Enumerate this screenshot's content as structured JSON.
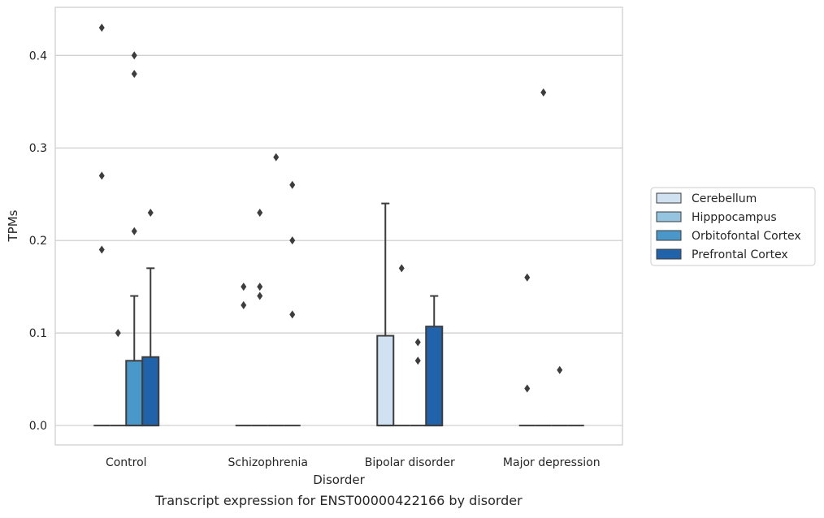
{
  "caption": "Transcript expression for ENST00000422166 by disorder",
  "chart_data": {
    "type": "boxplot",
    "title": "",
    "xlabel": "Disorder",
    "ylabel": "TPMs",
    "ylim": [
      -0.021,
      0.452
    ],
    "yticks": [
      0.0,
      0.1,
      0.2,
      0.3,
      0.4
    ],
    "ytick_labels": [
      "0.0",
      "0.1",
      "0.2",
      "0.3",
      "0.4"
    ],
    "grid": "horizontal",
    "legend_position": "right",
    "categories": [
      "Control",
      "Schizophrenia",
      "Bipolar disorder",
      "Major depression"
    ],
    "series": [
      {
        "name": "Cerebellum",
        "color": "#d0e1f2",
        "boxes": [
          {
            "q1": 0,
            "median": 0,
            "q3": 0,
            "whisker_low": 0,
            "whisker_high": 0,
            "outliers": [
              0.19,
              0.27,
              0.43
            ]
          },
          {
            "q1": 0,
            "median": 0,
            "q3": 0,
            "whisker_low": 0,
            "whisker_high": 0,
            "outliers": [
              0.13,
              0.15
            ]
          },
          {
            "q1": 0,
            "median": 0,
            "q3": 0.097,
            "whisker_low": 0,
            "whisker_high": 0.24,
            "outliers": []
          },
          {
            "q1": 0,
            "median": 0,
            "q3": 0,
            "whisker_low": 0,
            "whisker_high": 0,
            "outliers": [
              0.16,
              0.04
            ]
          }
        ]
      },
      {
        "name": "Hipppocampus",
        "color": "#94c4df",
        "boxes": [
          {
            "q1": 0,
            "median": 0,
            "q3": 0,
            "whisker_low": 0,
            "whisker_high": 0,
            "outliers": [
              0.1
            ]
          },
          {
            "q1": 0,
            "median": 0,
            "q3": 0,
            "whisker_low": 0,
            "whisker_high": 0,
            "outliers": [
              0.14,
              0.15,
              0.23
            ]
          },
          {
            "q1": 0,
            "median": 0,
            "q3": 0,
            "whisker_low": 0,
            "whisker_high": 0,
            "outliers": [
              0.17
            ]
          },
          {
            "q1": 0,
            "median": 0,
            "q3": 0,
            "whisker_low": 0,
            "whisker_high": 0,
            "outliers": [
              0.36
            ]
          }
        ]
      },
      {
        "name": "Orbitofontal Cortex",
        "color": "#4a98c9",
        "boxes": [
          {
            "q1": 0,
            "median": 0,
            "q3": 0.07,
            "whisker_low": 0,
            "whisker_high": 0.14,
            "outliers": [
              0.21,
              0.38,
              0.4
            ]
          },
          {
            "q1": 0,
            "median": 0,
            "q3": 0,
            "whisker_low": 0,
            "whisker_high": 0,
            "outliers": [
              0.29
            ]
          },
          {
            "q1": 0,
            "median": 0,
            "q3": 0,
            "whisker_low": 0,
            "whisker_high": 0,
            "outliers": [
              0.07,
              0.09
            ]
          },
          {
            "q1": 0,
            "median": 0,
            "q3": 0,
            "whisker_low": 0,
            "whisker_high": 0,
            "outliers": [
              0.06
            ]
          }
        ]
      },
      {
        "name": "Prefrontal Cortex",
        "color": "#2163aa",
        "boxes": [
          {
            "q1": 0,
            "median": 0,
            "q3": 0.074,
            "whisker_low": 0,
            "whisker_high": 0.17,
            "outliers": [
              0.23
            ]
          },
          {
            "q1": 0,
            "median": 0,
            "q3": 0,
            "whisker_low": 0,
            "whisker_high": 0,
            "outliers": [
              0.12,
              0.2,
              0.26
            ]
          },
          {
            "q1": 0,
            "median": 0,
            "q3": 0.107,
            "whisker_low": 0,
            "whisker_high": 0.14,
            "outliers": []
          },
          {
            "q1": 0,
            "median": 0,
            "q3": 0,
            "whisker_low": 0,
            "whisker_high": 0,
            "outliers": []
          }
        ]
      }
    ]
  }
}
